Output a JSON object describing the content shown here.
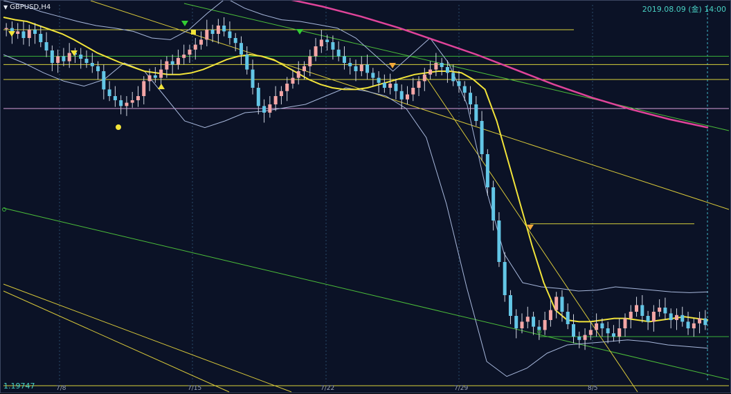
{
  "window": {
    "symbol_title": "GBPUSD,H4",
    "datetime": "2019.08.09 (金) 14:00",
    "price_label": "1.19747"
  },
  "colors": {
    "background": "#0b1226",
    "grid": "#2a4a6a",
    "bull_candle": "#f4a6a6",
    "bear_candle": "#63c6e6",
    "ma_fast": "#f2e43a",
    "ma_slow": "#e0449a",
    "bollinger": "#a8b8dc",
    "level_line_yellow": "#d9d23a",
    "level_line_green": "#3ab33a",
    "level_line_pink": "#d9a0d9",
    "trend_green": "#4cbf3a",
    "trend_yellow": "#d9c93a",
    "marker_yellow": "#f2e43a",
    "marker_orange": "#f2a83a",
    "marker_green": "#33cc33"
  },
  "chart_data": {
    "type": "candlestick",
    "title": "GBPUSD,H4",
    "x_tick_labels": [
      "7/8",
      "7/15",
      "7/22",
      "7/29",
      "8/5"
    ],
    "price_label": "1.19747",
    "grid": true,
    "series": [
      {
        "name": "close",
        "values": [
          1.2512,
          1.2505,
          1.2508,
          1.25,
          1.251,
          1.2505,
          1.2495,
          1.2485,
          1.247,
          1.2478,
          1.2472,
          1.2482,
          1.248,
          1.2475,
          1.247,
          1.2466,
          1.246,
          1.2438,
          1.243,
          1.2425,
          1.2418,
          1.2422,
          1.2425,
          1.243,
          1.2448,
          1.2455,
          1.2452,
          1.2462,
          1.2472,
          1.2468,
          1.2476,
          1.248,
          1.2486,
          1.2492,
          1.2498,
          1.251,
          1.2505,
          1.2515,
          1.2508,
          1.25,
          1.2494,
          1.248,
          1.2462,
          1.244,
          1.2418,
          1.241,
          1.242,
          1.243,
          1.2436,
          1.2445,
          1.2452,
          1.246,
          1.2466,
          1.2478,
          1.249,
          1.2498,
          1.2495,
          1.2486,
          1.2478,
          1.247,
          1.2466,
          1.246,
          1.2468,
          1.2458,
          1.2452,
          1.2446,
          1.244,
          1.2445,
          1.2436,
          1.2426,
          1.2432,
          1.244,
          1.2448,
          1.2456,
          1.2462,
          1.247,
          1.2465,
          1.2458,
          1.2448,
          1.2442,
          1.2434,
          1.242,
          1.24,
          1.236,
          1.232,
          1.228,
          1.223,
          1.219,
          1.2165,
          1.215,
          1.2158,
          1.2164,
          1.2152,
          1.2148,
          1.216,
          1.2172,
          1.2188,
          1.217,
          1.2155,
          1.214,
          1.2136,
          1.2142,
          1.2148,
          1.2156,
          1.215,
          1.2144,
          1.214,
          1.215,
          1.2162,
          1.217,
          1.2178,
          1.2165,
          1.2158,
          1.217,
          1.2175,
          1.2168,
          1.216,
          1.2166,
          1.2158,
          1.215,
          1.2156,
          1.2162,
          1.2154
        ]
      },
      {
        "name": "ma_fast",
        "values": [
          1.2525,
          1.2522,
          1.252,
          1.2515,
          1.251,
          1.2505,
          1.2498,
          1.249,
          1.2482,
          1.2476,
          1.247,
          1.2465,
          1.246,
          1.2458,
          1.2456,
          1.2456,
          1.2458,
          1.2462,
          1.2468,
          1.2474,
          1.2478,
          1.248,
          1.2478,
          1.2474,
          1.2466,
          1.2458,
          1.245,
          1.2444,
          1.244,
          1.2438,
          1.2438,
          1.244,
          1.2444,
          1.2448,
          1.2452,
          1.2456,
          1.2458,
          1.246,
          1.246,
          1.2458,
          1.245,
          1.2438,
          1.24,
          1.235,
          1.23,
          1.225,
          1.2205,
          1.2172,
          1.216,
          1.2158,
          1.2158,
          1.216,
          1.2162,
          1.2162,
          1.216,
          1.2158,
          1.216,
          1.2162,
          1.2164,
          1.2162,
          1.216
        ]
      },
      {
        "name": "ma_slow",
        "values": [
          1.2575,
          1.2572,
          1.2568,
          1.2562,
          1.2556,
          1.2548,
          1.2538,
          1.2526,
          1.2512,
          1.2496,
          1.248,
          1.2462,
          1.2444,
          1.2428,
          1.2414,
          1.2402,
          1.2392
        ]
      },
      {
        "name": "bollinger_upper",
        "values": [
          1.2545,
          1.254,
          1.2532,
          1.2526,
          1.252,
          1.2515,
          1.2512,
          1.2508,
          1.25,
          1.2498,
          1.251,
          1.253,
          1.2548,
          1.2536,
          1.2528,
          1.2522,
          1.252,
          1.2516,
          1.2512,
          1.25,
          1.248,
          1.246,
          1.248,
          1.25,
          1.247,
          1.242,
          1.232,
          1.224,
          1.2205,
          1.22,
          1.2198,
          1.2195,
          1.2196,
          1.22,
          1.2198,
          1.2196,
          1.2194,
          1.2193,
          1.2194
        ]
      },
      {
        "name": "bollinger_lower",
        "values": [
          1.248,
          1.247,
          1.2458,
          1.2448,
          1.2442,
          1.245,
          1.247,
          1.246,
          1.243,
          1.24,
          1.2392,
          1.24,
          1.241,
          1.2412,
          1.2416,
          1.242,
          1.243,
          1.244,
          1.2436,
          1.243,
          1.2415,
          1.238,
          1.23,
          1.22,
          1.211,
          1.2092,
          1.2102,
          1.212,
          1.213,
          1.2132,
          1.2134,
          1.2136,
          1.2134,
          1.213,
          1.2128,
          1.2126
        ]
      }
    ],
    "horizontal_levels": [
      {
        "color": "yellow",
        "price": 1.251
      },
      {
        "color": "green",
        "price": 1.2478
      },
      {
        "color": "yellow",
        "price": 1.2468
      },
      {
        "color": "yellow",
        "price": 1.245
      },
      {
        "color": "pink",
        "price": 1.2415
      },
      {
        "color": "yellow",
        "price": 1.2276
      },
      {
        "color": "green",
        "price": 1.214
      }
    ]
  }
}
